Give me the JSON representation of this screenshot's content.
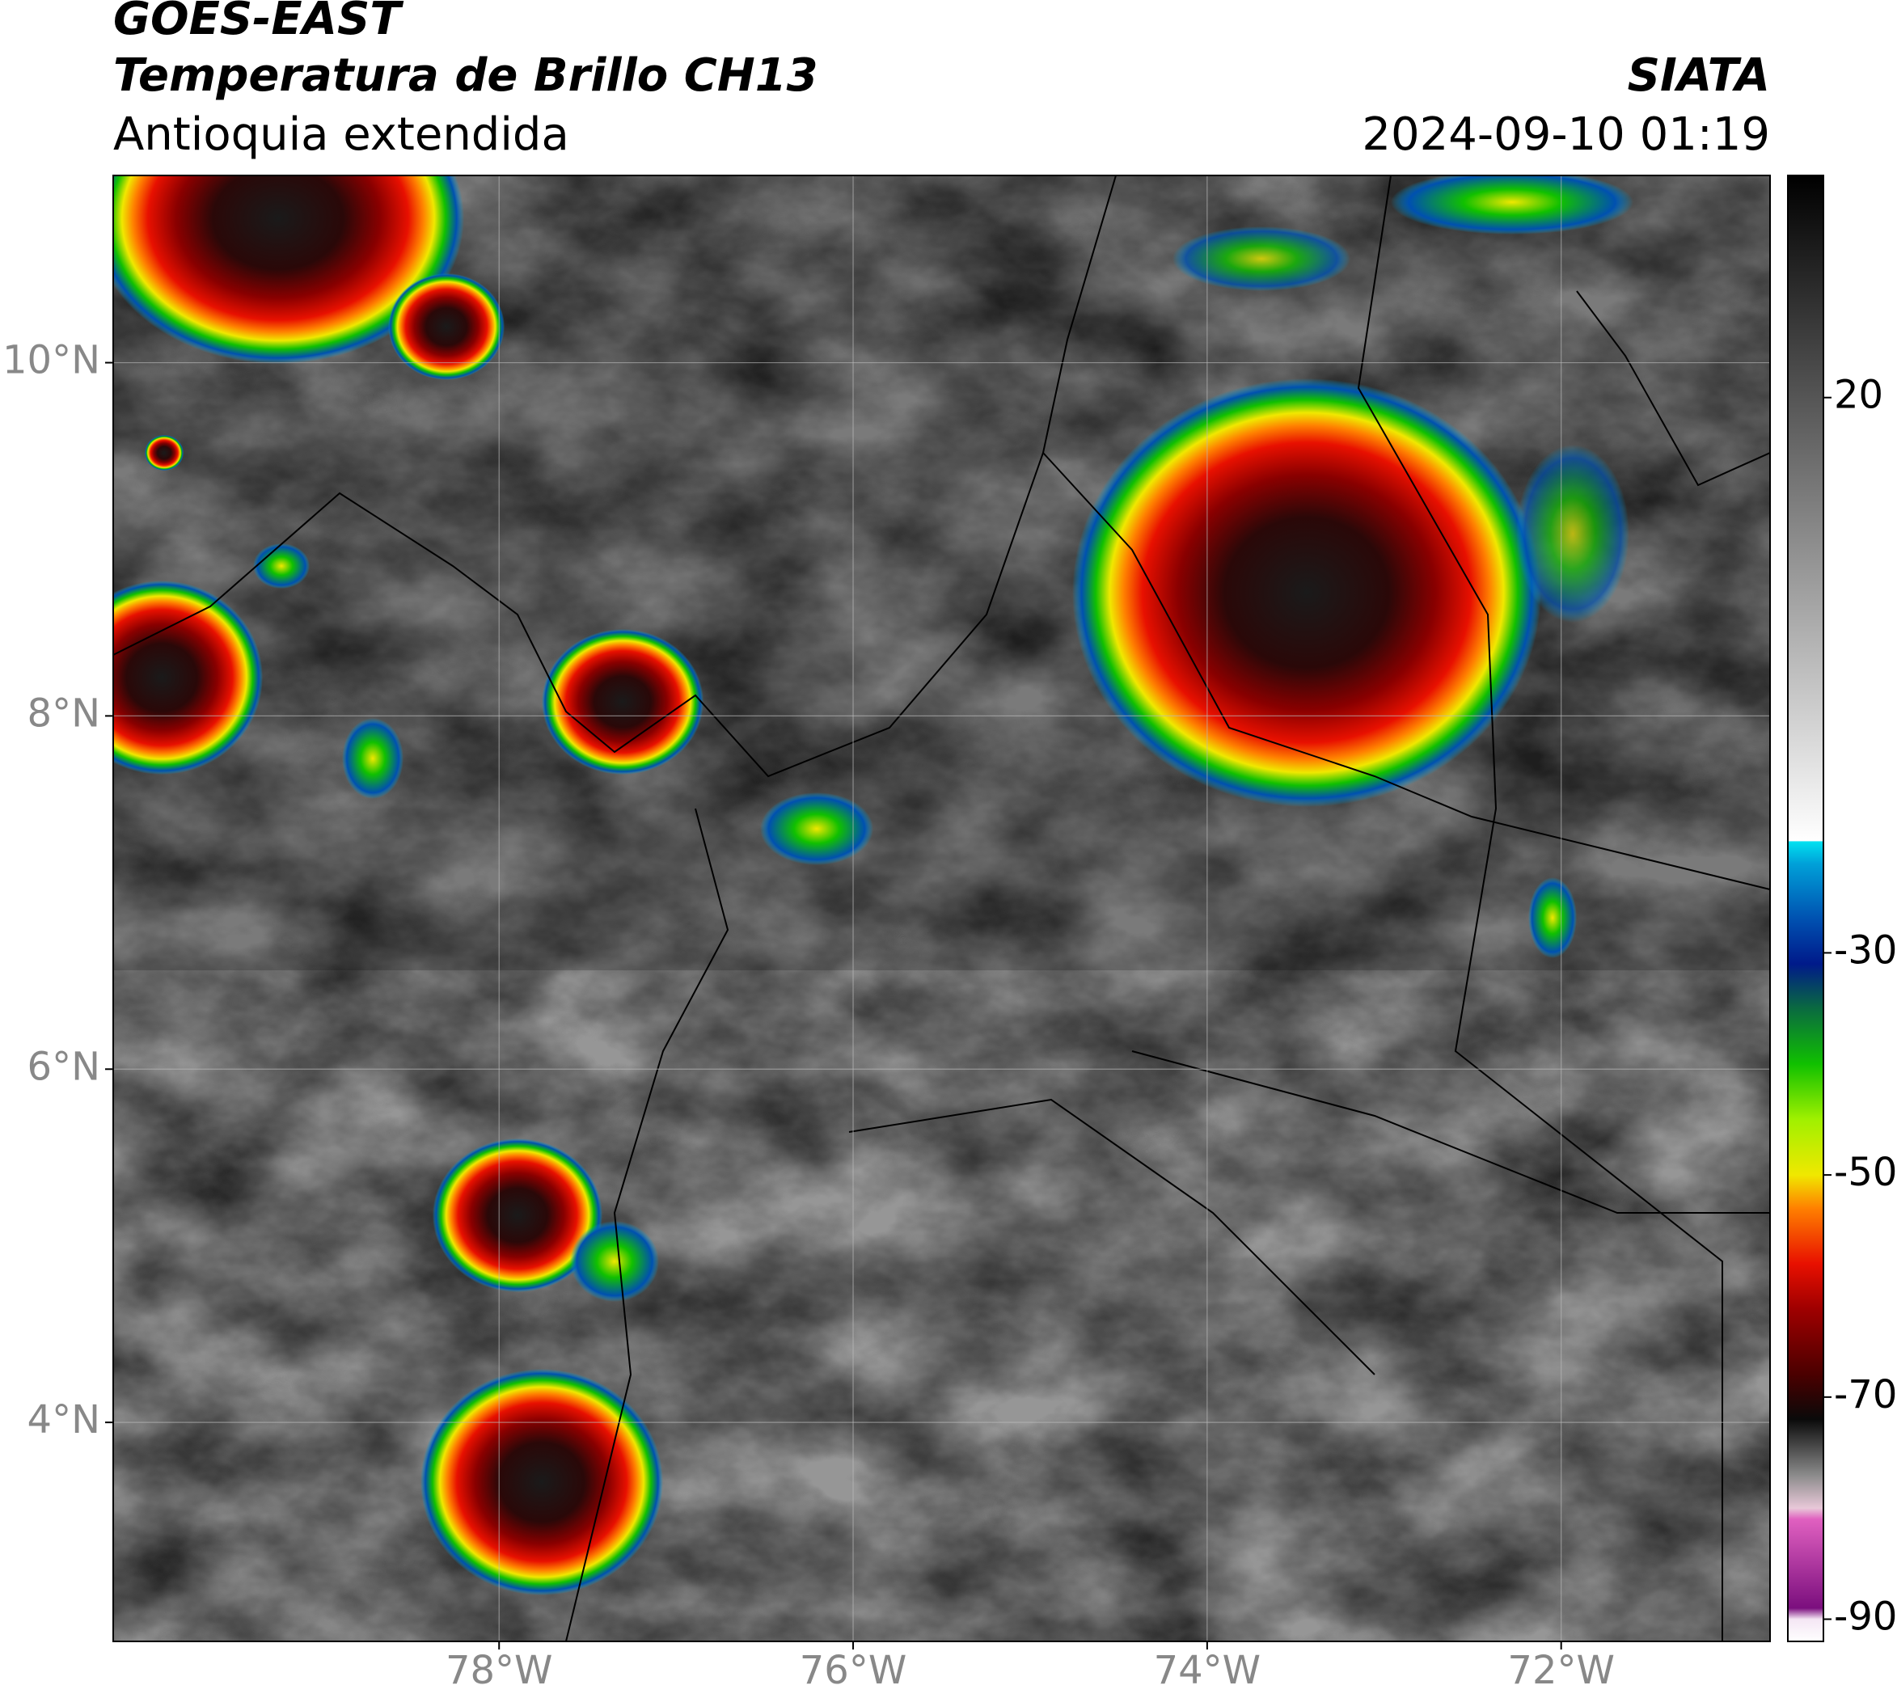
{
  "header": {
    "title": "GOES-EAST",
    "subtitle": "Temperatura de Brillo CH13",
    "region": "Antioquia extendida",
    "source": "SIATA",
    "timestamp": "2024-09-10 01:19"
  },
  "map": {
    "xlim": [
      -80.18,
      -70.82
    ],
    "ylim": [
      2.76,
      11.06
    ],
    "xticks": [
      {
        "value": -78,
        "label": "78°W"
      },
      {
        "value": -76,
        "label": "76°W"
      },
      {
        "value": -74,
        "label": "74°W"
      },
      {
        "value": -72,
        "label": "72°W"
      }
    ],
    "yticks": [
      {
        "value": 4,
        "label": "4°N"
      },
      {
        "value": 6,
        "label": "6°N"
      },
      {
        "value": 8,
        "label": "8°N"
      },
      {
        "value": 10,
        "label": "10°N"
      }
    ],
    "grid": true
  },
  "colorbar": {
    "lim": [
      -92,
      40
    ],
    "ticks": [
      -90,
      -70,
      -50,
      -30,
      20
    ],
    "stops": [
      [
        -92,
        "#ffffff"
      ],
      [
        -90,
        "#f4e6f4"
      ],
      [
        -89,
        "#7b0f7e"
      ],
      [
        -81,
        "#e060c0"
      ],
      [
        -80,
        "#e8c8d8"
      ],
      [
        -77,
        "#8a8a8a"
      ],
      [
        -72,
        "#0a0a0a"
      ],
      [
        -68,
        "#4a0000"
      ],
      [
        -62,
        "#a00000"
      ],
      [
        -58,
        "#e81000"
      ],
      [
        -53,
        "#ff8000"
      ],
      [
        -50,
        "#f0e800"
      ],
      [
        -45,
        "#a0f000"
      ],
      [
        -40,
        "#10c000"
      ],
      [
        -35,
        "#0a6a40"
      ],
      [
        -31,
        "#001a8a"
      ],
      [
        -27,
        "#0050b0"
      ],
      [
        -22,
        "#00a0d8"
      ],
      [
        -20,
        "#00e0f0"
      ],
      [
        -19.9,
        "#ffffff"
      ],
      [
        40,
        "#000000"
      ]
    ]
  }
}
